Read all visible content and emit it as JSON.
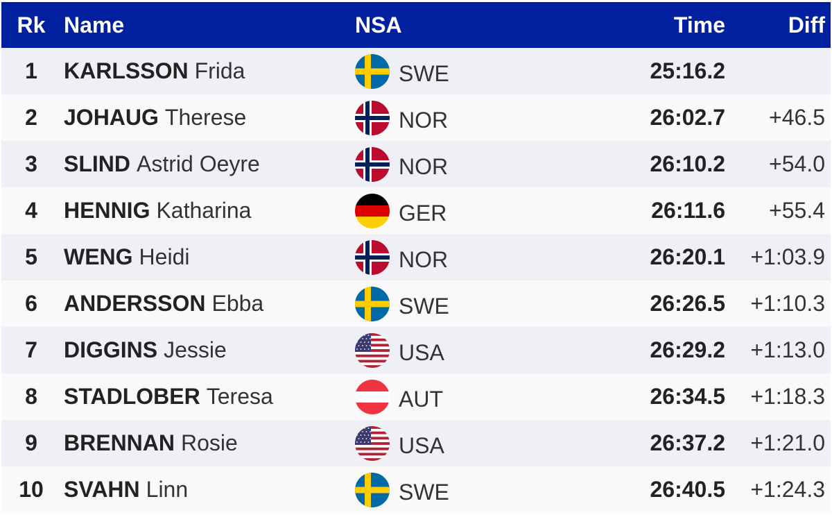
{
  "header": {
    "rk": "Rk",
    "name": "Name",
    "nsa": "NSA",
    "time": "Time",
    "diff": "Diff"
  },
  "rows": [
    {
      "rank": "1",
      "surname": "KARLSSON",
      "given": "Frida",
      "nsa": "SWE",
      "flag": "swe-flag-icon",
      "time": "25:16.2",
      "diff": ""
    },
    {
      "rank": "2",
      "surname": "JOHAUG",
      "given": "Therese",
      "nsa": "NOR",
      "flag": "nor-flag-icon",
      "time": "26:02.7",
      "diff": "+46.5"
    },
    {
      "rank": "3",
      "surname": "SLIND",
      "given": "Astrid Oeyre",
      "nsa": "NOR",
      "flag": "nor-flag-icon",
      "time": "26:10.2",
      "diff": "+54.0"
    },
    {
      "rank": "4",
      "surname": "HENNIG",
      "given": "Katharina",
      "nsa": "GER",
      "flag": "ger-flag-icon",
      "time": "26:11.6",
      "diff": "+55.4"
    },
    {
      "rank": "5",
      "surname": "WENG",
      "given": "Heidi",
      "nsa": "NOR",
      "flag": "nor-flag-icon",
      "time": "26:20.1",
      "diff": "+1:03.9"
    },
    {
      "rank": "6",
      "surname": "ANDERSSON",
      "given": "Ebba",
      "nsa": "SWE",
      "flag": "swe-flag-icon",
      "time": "26:26.5",
      "diff": "+1:10.3"
    },
    {
      "rank": "7",
      "surname": "DIGGINS",
      "given": "Jessie",
      "nsa": "USA",
      "flag": "usa-flag-icon",
      "time": "26:29.2",
      "diff": "+1:13.0"
    },
    {
      "rank": "8",
      "surname": "STADLOBER",
      "given": "Teresa",
      "nsa": "AUT",
      "flag": "aut-flag-icon",
      "time": "26:34.5",
      "diff": "+1:18.3"
    },
    {
      "rank": "9",
      "surname": "BRENNAN",
      "given": "Rosie",
      "nsa": "USA",
      "flag": "usa-flag-icon",
      "time": "26:37.2",
      "diff": "+1:21.0"
    },
    {
      "rank": "10",
      "surname": "SVAHN",
      "given": "Linn",
      "nsa": "SWE",
      "flag": "swe-flag-icon",
      "time": "26:40.5",
      "diff": "+1:24.3"
    }
  ],
  "colors": {
    "header_bg": "#00209f",
    "row_odd": "#eff0f6",
    "row_even": "#f9f9fa"
  }
}
